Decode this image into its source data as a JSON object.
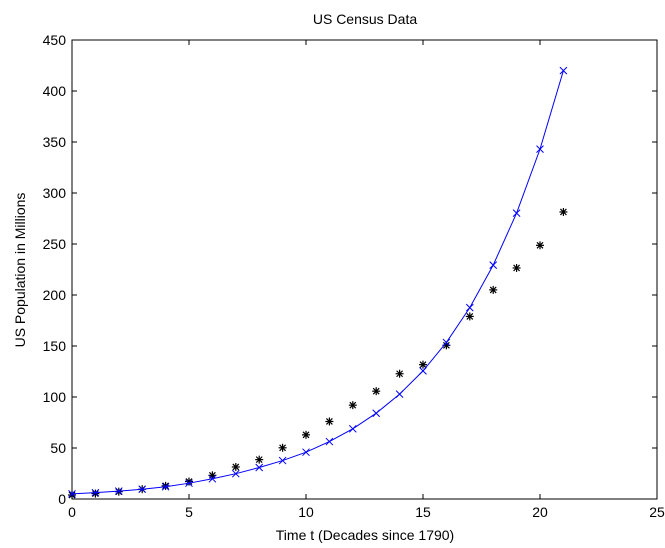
{
  "chart_data": {
    "type": "scatter",
    "title": "US Census Data",
    "xlabel": "Time t (Decades since 1790)",
    "ylabel": "US Population in Millions",
    "xlim": [
      0,
      25
    ],
    "ylim": [
      0,
      450
    ],
    "xticks": [
      0,
      5,
      10,
      15,
      20,
      25
    ],
    "yticks": [
      0,
      50,
      100,
      150,
      200,
      250,
      300,
      350,
      400,
      450
    ],
    "grid": false,
    "series": [
      {
        "marker": "asterisk",
        "line": false,
        "color": "#000000",
        "x": [
          0,
          1,
          2,
          3,
          4,
          5,
          6,
          7,
          8,
          9,
          10,
          11,
          12,
          13,
          14,
          15,
          16,
          17,
          18,
          19,
          20,
          21
        ],
        "y": [
          3.9,
          5.3,
          7.2,
          9.6,
          12.9,
          17.1,
          23.2,
          31.4,
          38.6,
          50.2,
          62.9,
          76.0,
          92.0,
          105.7,
          122.8,
          131.7,
          150.7,
          179.0,
          205.0,
          226.5,
          248.7,
          281.4
        ]
      },
      {
        "marker": "x",
        "line": true,
        "color": "#0000ff",
        "x": [
          0,
          1,
          2,
          3,
          4,
          5,
          6,
          7,
          8,
          9,
          10,
          11,
          12,
          13,
          14,
          15,
          16,
          17,
          18,
          19,
          20,
          21
        ],
        "y": [
          5.0,
          6.2,
          7.7,
          9.6,
          12.0,
          15.5,
          19.8,
          24.8,
          30.9,
          37.7,
          45.9,
          56.3,
          68.8,
          84.1,
          102.8,
          125.6,
          153.5,
          187.6,
          229.3,
          280.3,
          343.0,
          420.0
        ]
      }
    ]
  }
}
